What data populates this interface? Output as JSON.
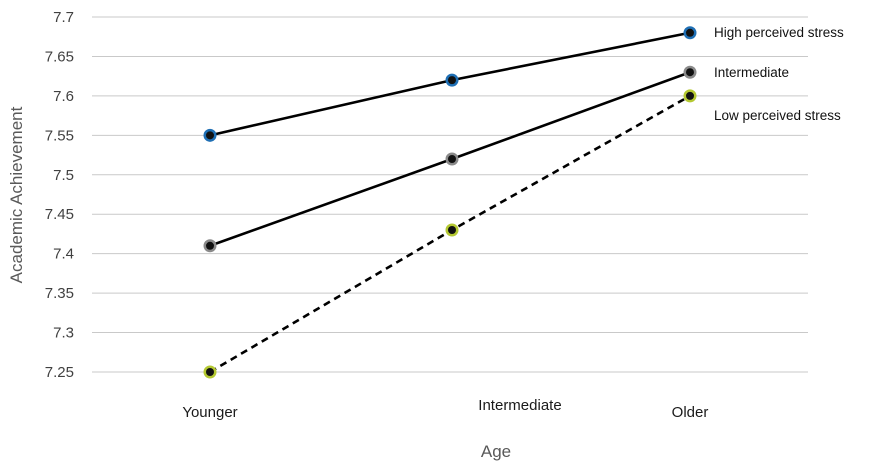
{
  "chart_data": {
    "type": "line",
    "title": "",
    "xlabel": "Age",
    "ylabel": "Academic Achievement",
    "categories": [
      "Younger",
      "Intermediate",
      "Older"
    ],
    "ylim": [
      7.25,
      7.7
    ],
    "yticks": [
      "7.25",
      "7.3",
      "7.35",
      "7.4",
      "7.45",
      "7.5",
      "7.55",
      "7.6",
      "7.65",
      "7.7"
    ],
    "grid": true,
    "legend": "inline-right",
    "series": [
      {
        "name": "High perceived stress",
        "values": [
          7.55,
          7.62,
          7.68
        ],
        "line_style": "solid",
        "color": "#000000",
        "marker_color": "#1f6fb4"
      },
      {
        "name": "Intermediate",
        "values": [
          7.41,
          7.52,
          7.63
        ],
        "line_style": "solid",
        "color": "#000000",
        "marker_color": "#8a8a8a"
      },
      {
        "name": "Low  perceived stress",
        "values": [
          7.25,
          7.43,
          7.6
        ],
        "line_style": "dashed",
        "color": "#000000",
        "marker_color": "#b4c832"
      }
    ]
  }
}
